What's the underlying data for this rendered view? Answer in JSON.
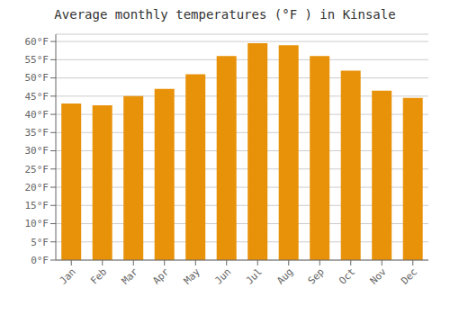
{
  "chart_data": {
    "type": "bar",
    "title": "Average monthly temperatures (°F ) in Kinsale",
    "categories": [
      "Jan",
      "Feb",
      "Mar",
      "Apr",
      "May",
      "Jun",
      "Jul",
      "Aug",
      "Sep",
      "Oct",
      "Nov",
      "Dec"
    ],
    "values": [
      43.0,
      42.5,
      45.0,
      47.0,
      51.0,
      56.0,
      59.5,
      59.0,
      56.0,
      52.0,
      46.5,
      44.5
    ],
    "color": "#E8920A",
    "ylim": [
      0,
      62
    ],
    "yticks": [
      {
        "value": 0,
        "label": "0°F"
      },
      {
        "value": 5,
        "label": "5°F"
      },
      {
        "value": 10,
        "label": "10°F"
      },
      {
        "value": 15,
        "label": "15°F"
      },
      {
        "value": 20,
        "label": "20°F"
      },
      {
        "value": 25,
        "label": "25°F"
      },
      {
        "value": 30,
        "label": "30°F"
      },
      {
        "value": 35,
        "label": "35°F"
      },
      {
        "value": 40,
        "label": "40°F"
      },
      {
        "value": 45,
        "label": "45°F"
      },
      {
        "value": 50,
        "label": "50°F"
      },
      {
        "value": 55,
        "label": "55°F"
      },
      {
        "value": 60,
        "label": "60°F"
      }
    ],
    "grid": true
  }
}
